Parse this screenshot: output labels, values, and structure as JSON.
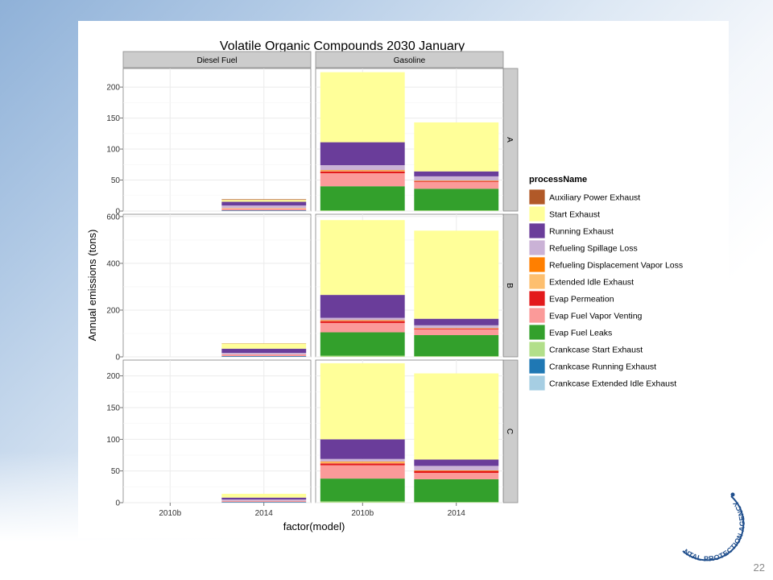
{
  "slide": {
    "page_number": "22",
    "seal_text": "NTAL PROTECTION AGENCY"
  },
  "chart_data": {
    "type": "bar",
    "stacked": true,
    "title": "Volatile Organic Compounds 2030 January",
    "xlabel": "factor(model)",
    "ylabel": "Annual emissions (tons)",
    "categories": [
      "2010b",
      "2014"
    ],
    "facet_columns": [
      "Diesel Fuel",
      "Gasoline"
    ],
    "facet_rows": [
      {
        "label": "A",
        "ylim": [
          0,
          230
        ],
        "ticks": [
          0,
          50,
          100,
          150,
          200
        ]
      },
      {
        "label": "B",
        "ylim": [
          0,
          610
        ],
        "ticks": [
          0,
          200,
          400,
          600
        ]
      },
      {
        "label": "C",
        "ylim": [
          0,
          225
        ],
        "ticks": [
          0,
          50,
          100,
          150,
          200
        ]
      }
    ],
    "grid": true,
    "legend": {
      "title": "processName",
      "position": "right",
      "entries": [
        {
          "name": "Auxiliary Power Exhaust",
          "color": "#b15928"
        },
        {
          "name": "Start Exhaust",
          "color": "#ffff99"
        },
        {
          "name": "Running Exhaust",
          "color": "#6a3d9a"
        },
        {
          "name": "Refueling Spillage Loss",
          "color": "#cab2d6"
        },
        {
          "name": "Refueling Displacement Vapor Loss",
          "color": "#ff7f00"
        },
        {
          "name": "Extended Idle Exhaust",
          "color": "#fdbf6f"
        },
        {
          "name": "Evap Permeation",
          "color": "#e31a1c"
        },
        {
          "name": "Evap Fuel Vapor Venting",
          "color": "#fb9a99"
        },
        {
          "name": "Evap Fuel Leaks",
          "color": "#33a02c"
        },
        {
          "name": "Crankcase Start Exhaust",
          "color": "#b2df8a"
        },
        {
          "name": "Crankcase Running Exhaust",
          "color": "#1f78b4"
        },
        {
          "name": "Crankcase Extended Idle Exhaust",
          "color": "#a6cee3"
        }
      ]
    },
    "stack_order": [
      "Crankcase Extended Idle Exhaust",
      "Crankcase Running Exhaust",
      "Crankcase Start Exhaust",
      "Evap Fuel Leaks",
      "Evap Fuel Vapor Venting",
      "Evap Permeation",
      "Extended Idle Exhaust",
      "Refueling Displacement Vapor Loss",
      "Refueling Spillage Loss",
      "Running Exhaust",
      "Start Exhaust",
      "Auxiliary Power Exhaust"
    ],
    "panels": [
      {
        "row": "A",
        "column": "Diesel Fuel",
        "bars": [
          {
            "category": "2010b",
            "segments": []
          },
          {
            "category": "2014",
            "segments": [
              {
                "process": "Crankcase Running Exhaust",
                "value": 1
              },
              {
                "process": "Evap Fuel Vapor Venting",
                "value": 3
              },
              {
                "process": "Refueling Spillage Loss",
                "value": 4
              },
              {
                "process": "Running Exhaust",
                "value": 6
              },
              {
                "process": "Start Exhaust",
                "value": 3
              },
              {
                "process": "Extended Idle Exhaust",
                "value": 1
              },
              {
                "process": "Auxiliary Power Exhaust",
                "value": 1
              }
            ]
          }
        ]
      },
      {
        "row": "A",
        "column": "Gasoline",
        "bars": [
          {
            "category": "2010b",
            "segments": [
              {
                "process": "Crankcase Start Exhaust",
                "value": 1
              },
              {
                "process": "Evap Fuel Leaks",
                "value": 39
              },
              {
                "process": "Evap Fuel Vapor Venting",
                "value": 21
              },
              {
                "process": "Evap Permeation",
                "value": 3
              },
              {
                "process": "Extended Idle Exhaust",
                "value": 1
              },
              {
                "process": "Refueling Displacement Vapor Loss",
                "value": 1
              },
              {
                "process": "Refueling Spillage Loss",
                "value": 8
              },
              {
                "process": "Running Exhaust",
                "value": 37
              },
              {
                "process": "Start Exhaust",
                "value": 113
              }
            ]
          },
          {
            "category": "2014",
            "segments": [
              {
                "process": "Crankcase Start Exhaust",
                "value": 1
              },
              {
                "process": "Evap Fuel Leaks",
                "value": 35
              },
              {
                "process": "Evap Fuel Vapor Venting",
                "value": 11
              },
              {
                "process": "Evap Permeation",
                "value": 1
              },
              {
                "process": "Refueling Displacement Vapor Loss",
                "value": 1
              },
              {
                "process": "Refueling Spillage Loss",
                "value": 7
              },
              {
                "process": "Running Exhaust",
                "value": 8
              },
              {
                "process": "Start Exhaust",
                "value": 79
              }
            ]
          }
        ]
      },
      {
        "row": "B",
        "column": "Diesel Fuel",
        "bars": [
          {
            "category": "2010b",
            "segments": []
          },
          {
            "category": "2014",
            "segments": [
              {
                "process": "Crankcase Running Exhaust",
                "value": 3
              },
              {
                "process": "Evap Fuel Vapor Venting",
                "value": 8
              },
              {
                "process": "Refueling Spillage Loss",
                "value": 6
              },
              {
                "process": "Running Exhaust",
                "value": 18
              },
              {
                "process": "Start Exhaust",
                "value": 22
              },
              {
                "process": "Auxiliary Power Exhaust",
                "value": 1
              }
            ]
          }
        ]
      },
      {
        "row": "B",
        "column": "Gasoline",
        "bars": [
          {
            "category": "2010b",
            "segments": [
              {
                "process": "Crankcase Start Exhaust",
                "value": 5
              },
              {
                "process": "Evap Fuel Leaks",
                "value": 100
              },
              {
                "process": "Evap Fuel Vapor Venting",
                "value": 40
              },
              {
                "process": "Evap Permeation",
                "value": 8
              },
              {
                "process": "Extended Idle Exhaust",
                "value": 2
              },
              {
                "process": "Refueling Displacement Vapor Loss",
                "value": 2
              },
              {
                "process": "Refueling Spillage Loss",
                "value": 10
              },
              {
                "process": "Running Exhaust",
                "value": 98
              },
              {
                "process": "Start Exhaust",
                "value": 320
              }
            ]
          },
          {
            "category": "2014",
            "segments": [
              {
                "process": "Crankcase Start Exhaust",
                "value": 3
              },
              {
                "process": "Evap Fuel Leaks",
                "value": 90
              },
              {
                "process": "Evap Fuel Vapor Venting",
                "value": 25
              },
              {
                "process": "Evap Permeation",
                "value": 3
              },
              {
                "process": "Refueling Displacement Vapor Loss",
                "value": 2
              },
              {
                "process": "Refueling Spillage Loss",
                "value": 12
              },
              {
                "process": "Running Exhaust",
                "value": 28
              },
              {
                "process": "Start Exhaust",
                "value": 377
              }
            ]
          }
        ]
      },
      {
        "row": "C",
        "column": "Diesel Fuel",
        "bars": [
          {
            "category": "2010b",
            "segments": []
          },
          {
            "category": "2014",
            "segments": [
              {
                "process": "Crankcase Running Exhaust",
                "value": 1
              },
              {
                "process": "Evap Fuel Vapor Venting",
                "value": 2
              },
              {
                "process": "Refueling Spillage Loss",
                "value": 2
              },
              {
                "process": "Running Exhaust",
                "value": 3
              },
              {
                "process": "Start Exhaust",
                "value": 6
              }
            ]
          }
        ]
      },
      {
        "row": "C",
        "column": "Gasoline",
        "bars": [
          {
            "category": "2010b",
            "segments": [
              {
                "process": "Crankcase Start Exhaust",
                "value": 2
              },
              {
                "process": "Evap Fuel Leaks",
                "value": 36
              },
              {
                "process": "Evap Fuel Vapor Venting",
                "value": 21
              },
              {
                "process": "Evap Permeation",
                "value": 3
              },
              {
                "process": "Extended Idle Exhaust",
                "value": 2
              },
              {
                "process": "Refueling Displacement Vapor Loss",
                "value": 1
              },
              {
                "process": "Refueling Spillage Loss",
                "value": 4
              },
              {
                "process": "Running Exhaust",
                "value": 31
              },
              {
                "process": "Start Exhaust",
                "value": 120
              }
            ]
          },
          {
            "category": "2014",
            "segments": [
              {
                "process": "Crankcase Start Exhaust",
                "value": 1
              },
              {
                "process": "Evap Fuel Leaks",
                "value": 36
              },
              {
                "process": "Evap Fuel Vapor Venting",
                "value": 10
              },
              {
                "process": "Evap Permeation",
                "value": 3
              },
              {
                "process": "Refueling Displacement Vapor Loss",
                "value": 1
              },
              {
                "process": "Refueling Spillage Loss",
                "value": 7
              },
              {
                "process": "Running Exhaust",
                "value": 10
              },
              {
                "process": "Start Exhaust",
                "value": 136
              }
            ]
          }
        ]
      }
    ]
  }
}
